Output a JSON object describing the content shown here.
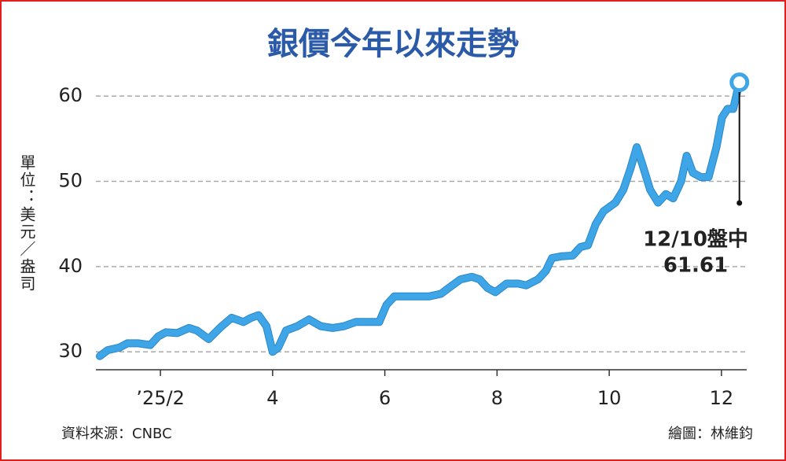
{
  "chart_data": {
    "type": "line",
    "title": "銀價今年以來走勢",
    "y_label": "單位：美元／盎司",
    "source": "資料來源：CNBC",
    "credit": "繪圖：林維鈞",
    "annotation": "12/10盤中",
    "color": "#3ea6e6",
    "x": [
      0.92,
      1.06,
      1.27,
      1.41,
      1.61,
      1.82,
      1.96,
      2.1,
      2.3,
      2.51,
      2.65,
      2.86,
      3.06,
      3.27,
      3.48,
      3.62,
      3.75,
      3.89,
      4.0,
      4.1,
      4.24,
      4.44,
      4.65,
      4.86,
      5.07,
      5.27,
      5.48,
      5.69,
      5.9,
      6.03,
      6.17,
      6.38,
      6.59,
      6.79,
      7.0,
      7.14,
      7.35,
      7.55,
      7.69,
      7.83,
      7.97,
      8.17,
      8.38,
      8.52,
      8.73,
      8.87,
      8.98,
      9.14,
      9.35,
      9.49,
      9.62,
      9.76,
      9.9,
      10.11,
      10.25,
      10.38,
      10.49,
      10.59,
      10.73,
      10.87,
      11.01,
      11.14,
      11.28,
      11.38,
      11.49,
      11.63,
      11.77,
      11.91,
      12.01,
      12.11,
      12.21,
      12.32
    ],
    "values": [
      29.5,
      30.2,
      30.5,
      31,
      31,
      30.8,
      31.8,
      32.3,
      32.2,
      32.8,
      32.5,
      31.5,
      32.8,
      34,
      33.5,
      34,
      34.3,
      33,
      30,
      30.5,
      32.5,
      33,
      33.8,
      33,
      32.8,
      33,
      33.5,
      33.5,
      33.5,
      35.5,
      36.5,
      36.5,
      36.5,
      36.5,
      36.8,
      37.5,
      38.5,
      38.8,
      38.5,
      37.5,
      37,
      38,
      38,
      37.8,
      38.5,
      39.5,
      41,
      41.2,
      41.3,
      42.3,
      42.5,
      45,
      46.5,
      47.5,
      49,
      51.5,
      54,
      52,
      49,
      47.5,
      48.5,
      48,
      50,
      53,
      51,
      50.5,
      50.5,
      54,
      57.5,
      58.5,
      58.5,
      61.61
    ],
    "xlim": [
      0.85,
      12.45
    ],
    "ylim": [
      27.9,
      62.5
    ],
    "xticks": [
      {
        "value": 2,
        "label": "’25/2"
      },
      4,
      6,
      8,
      10,
      12
    ],
    "yticks": [
      30,
      40,
      50,
      60
    ],
    "grid": true
  }
}
